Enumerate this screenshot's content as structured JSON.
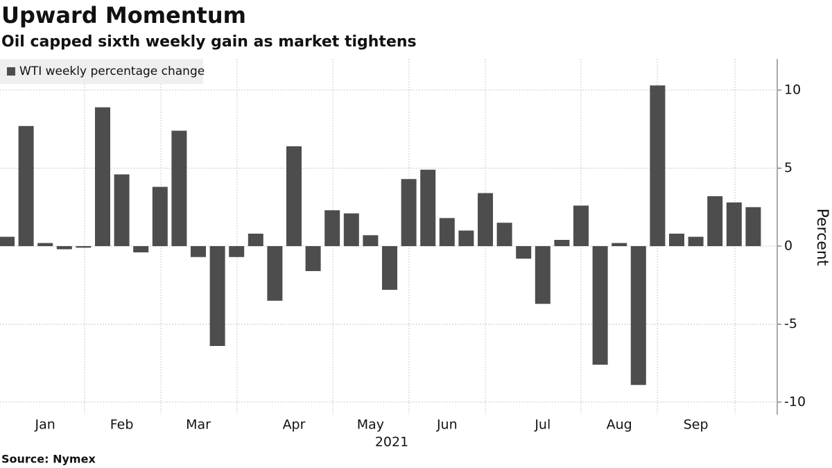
{
  "chart_data": {
    "type": "bar",
    "title": "Upward Momentum",
    "subtitle": "Oil capped sixth weekly gain as market tightens",
    "source": "Source: Nymex",
    "x_label": "2021",
    "y_label": "Percent",
    "categories": [
      null,
      null,
      "Jan",
      null,
      null,
      null,
      "Feb",
      null,
      null,
      null,
      "Mar",
      null,
      null,
      null,
      null,
      "Apr",
      null,
      null,
      null,
      "May",
      null,
      null,
      null,
      "Jun",
      null,
      null,
      null,
      null,
      "Jul",
      null,
      null,
      null,
      "Aug",
      null,
      null,
      null,
      "Sep",
      null,
      null,
      null
    ],
    "series": [
      {
        "name": "WTI weekly percentage change",
        "color": "#4d4d4d",
        "values": [
          0.6,
          7.7,
          0.2,
          -0.2,
          -0.1,
          8.9,
          4.6,
          -0.4,
          3.8,
          7.4,
          -0.7,
          -6.4,
          -0.7,
          0.8,
          -3.5,
          6.4,
          -1.6,
          2.3,
          2.1,
          0.7,
          -2.8,
          4.3,
          4.9,
          1.8,
          1.0,
          3.4,
          1.5,
          -0.8,
          -3.7,
          0.4,
          2.6,
          -7.6,
          0.2,
          -8.9,
          10.3,
          0.8,
          0.6,
          3.2,
          2.8,
          2.5
        ]
      }
    ],
    "ylim": [
      -10.8,
      12.0
    ],
    "yticks": [
      10,
      5,
      0,
      -5,
      -10
    ],
    "grid": true,
    "legend": "top-left"
  }
}
